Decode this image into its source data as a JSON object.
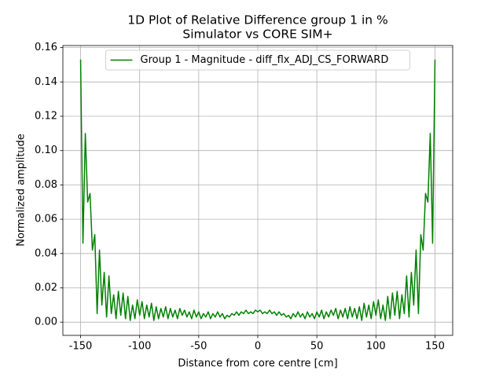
{
  "chart_data": {
    "type": "line",
    "title": [
      "1D Plot of Relative Difference group 1 in %",
      "Simulator vs CORE SIM+"
    ],
    "xlabel": "Distance from core centre [cm]",
    "ylabel": "Normalized amplitude",
    "x": [
      -150,
      -148,
      -146,
      -144,
      -142,
      -140,
      -138,
      -136,
      -134,
      -132,
      -130,
      -128,
      -126,
      -124,
      -122,
      -120,
      -118,
      -116,
      -114,
      -112,
      -110,
      -108,
      -106,
      -104,
      -102,
      -100,
      -98,
      -96,
      -94,
      -92,
      -90,
      -88,
      -86,
      -84,
      -82,
      -80,
      -78,
      -76,
      -74,
      -72,
      -70,
      -68,
      -66,
      -64,
      -62,
      -60,
      -58,
      -56,
      -54,
      -52,
      -50,
      -48,
      -46,
      -44,
      -42,
      -40,
      -38,
      -36,
      -34,
      -32,
      -30,
      -28,
      -26,
      -24,
      -22,
      -20,
      -18,
      -16,
      -14,
      -12,
      -10,
      -8,
      -6,
      -4,
      -2,
      0,
      2,
      4,
      6,
      8,
      10,
      12,
      14,
      16,
      18,
      20,
      22,
      24,
      26,
      28,
      30,
      32,
      34,
      36,
      38,
      40,
      42,
      44,
      46,
      48,
      50,
      52,
      54,
      56,
      58,
      60,
      62,
      64,
      66,
      68,
      70,
      72,
      74,
      76,
      78,
      80,
      82,
      84,
      86,
      88,
      90,
      92,
      94,
      96,
      98,
      100,
      102,
      104,
      106,
      108,
      110,
      112,
      114,
      116,
      118,
      120,
      122,
      124,
      126,
      128,
      130,
      132,
      134,
      136,
      138,
      140,
      142,
      144,
      146,
      148,
      150
    ],
    "series": [
      {
        "name": "Group 1 - Magnitude - diff_flx_ADJ_CS_FORWARD",
        "color": "#008000",
        "values": [
          0.153,
          0.046,
          0.11,
          0.07,
          0.075,
          0.042,
          0.051,
          0.005,
          0.042,
          0.01,
          0.029,
          0.003,
          0.027,
          0.005,
          0.016,
          0.002,
          0.018,
          0.004,
          0.017,
          0.002,
          0.015,
          0.001,
          0.01,
          0.002,
          0.013,
          0.004,
          0.012,
          0.002,
          0.01,
          0.003,
          0.011,
          0.001,
          0.009,
          0.002,
          0.008,
          0.003,
          0.009,
          0.002,
          0.008,
          0.003,
          0.007,
          0.002,
          0.008,
          0.004,
          0.007,
          0.003,
          0.006,
          0.002,
          0.007,
          0.003,
          0.006,
          0.002,
          0.005,
          0.003,
          0.006,
          0.002,
          0.005,
          0.003,
          0.006,
          0.003,
          0.005,
          0.002,
          0.004,
          0.003,
          0.005,
          0.004,
          0.006,
          0.004,
          0.006,
          0.005,
          0.007,
          0.005,
          0.006,
          0.005,
          0.007,
          0.006,
          0.007,
          0.005,
          0.006,
          0.005,
          0.007,
          0.005,
          0.006,
          0.004,
          0.006,
          0.004,
          0.005,
          0.003,
          0.004,
          0.002,
          0.005,
          0.003,
          0.006,
          0.003,
          0.005,
          0.002,
          0.006,
          0.003,
          0.005,
          0.002,
          0.006,
          0.003,
          0.007,
          0.002,
          0.006,
          0.003,
          0.007,
          0.004,
          0.008,
          0.002,
          0.007,
          0.003,
          0.008,
          0.002,
          0.009,
          0.003,
          0.008,
          0.002,
          0.009,
          0.001,
          0.011,
          0.003,
          0.01,
          0.002,
          0.012,
          0.004,
          0.013,
          0.002,
          0.01,
          0.001,
          0.015,
          0.002,
          0.017,
          0.004,
          0.018,
          0.002,
          0.016,
          0.005,
          0.027,
          0.003,
          0.029,
          0.01,
          0.042,
          0.005,
          0.051,
          0.042,
          0.075,
          0.07,
          0.11,
          0.046,
          0.153
        ]
      }
    ],
    "xlim": [
      -165,
      165
    ],
    "xticks": [
      -150,
      -100,
      -50,
      0,
      50,
      100,
      150
    ],
    "ylim": [
      -0.0077,
      0.1612
    ],
    "yticks": [
      {
        "value": 0,
        "label": "0.00"
      },
      {
        "value": 0.02,
        "label": "0.02"
      },
      {
        "value": 0.04,
        "label": "0.04"
      },
      {
        "value": 0.06,
        "label": "0.06"
      },
      {
        "value": 0.08,
        "label": "0.08"
      },
      {
        "value": 0.1,
        "label": "0.10"
      },
      {
        "value": 0.12,
        "label": "0.12"
      },
      {
        "value": 0.14,
        "label": "0.14"
      },
      {
        "value": 0.16,
        "label": "0.16"
      }
    ],
    "grid": true,
    "legend": "upper center"
  }
}
